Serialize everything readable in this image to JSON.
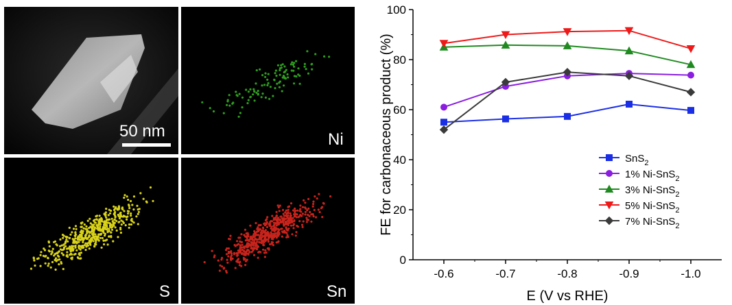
{
  "micrographs": {
    "scale_bar_label": "50 nm",
    "panels": [
      {
        "label": "",
        "kind": "haadf"
      },
      {
        "label": "Ni",
        "color": "#2e9d1e",
        "dots": 110
      },
      {
        "label": "S",
        "color": "#d8d21a",
        "dots": 520
      },
      {
        "label": "Sn",
        "color": "#c8241c",
        "dots": 560
      }
    ]
  },
  "chart_data": {
    "type": "line",
    "xlabel": "E (V vs RHE)",
    "ylabel": "FE for carbonaceous product (%)",
    "x": [
      -0.6,
      -0.7,
      -0.8,
      -0.9,
      -1.0
    ],
    "x_tick_labels": [
      "-0.6",
      "-0.7",
      "-0.8",
      "-0.9",
      "-1.0"
    ],
    "xlim": [
      -0.55,
      -1.05
    ],
    "ylim": [
      0,
      100
    ],
    "y_ticks": [
      0,
      20,
      40,
      60,
      80,
      100
    ],
    "grid": false,
    "legend_position": "lower-right",
    "series": [
      {
        "name": "SnS",
        "sub": "2",
        "color": "#1a2ee6",
        "marker": "square",
        "values": [
          55,
          56.3,
          57.3,
          62.2,
          59.7
        ]
      },
      {
        "name": "1% Ni-SnS",
        "sub": "2",
        "color": "#8a1de0",
        "marker": "circle",
        "values": [
          61,
          69.3,
          73.5,
          74.5,
          73.8
        ]
      },
      {
        "name": "3% Ni-SnS",
        "sub": "2",
        "color": "#1f8a1f",
        "marker": "triangle-up",
        "values": [
          85,
          85.8,
          85.5,
          83.5,
          78
        ]
      },
      {
        "name": "5% Ni-SnS",
        "sub": "2",
        "color": "#ee1a1a",
        "marker": "triangle-down",
        "values": [
          86.5,
          90,
          91.2,
          91.6,
          84.4
        ]
      },
      {
        "name": "7% Ni-SnS",
        "sub": "2",
        "color": "#3a3a3a",
        "marker": "diamond",
        "values": [
          52,
          71,
          75,
          73.5,
          67
        ]
      }
    ]
  }
}
